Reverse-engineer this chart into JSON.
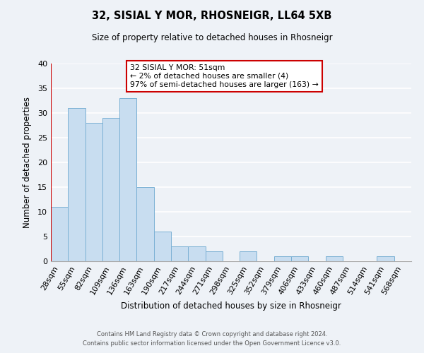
{
  "title": "32, SISIAL Y MOR, RHOSNEIGR, LL64 5XB",
  "subtitle": "Size of property relative to detached houses in Rhosneigr",
  "xlabel": "Distribution of detached houses by size in Rhosneigr",
  "ylabel": "Number of detached properties",
  "bar_color": "#c8ddf0",
  "bar_edge_color": "#7ab0d4",
  "highlight_left_edge_color": "#cc0000",
  "bins": [
    "28sqm",
    "55sqm",
    "82sqm",
    "109sqm",
    "136sqm",
    "163sqm",
    "190sqm",
    "217sqm",
    "244sqm",
    "271sqm",
    "298sqm",
    "325sqm",
    "352sqm",
    "379sqm",
    "406sqm",
    "433sqm",
    "460sqm",
    "487sqm",
    "514sqm",
    "541sqm",
    "568sqm"
  ],
  "values": [
    11,
    31,
    28,
    29,
    33,
    15,
    6,
    3,
    3,
    2,
    0,
    2,
    0,
    1,
    1,
    0,
    1,
    0,
    0,
    1,
    0
  ],
  "highlight_index": 0,
  "annotation_title": "32 SISIAL Y MOR: 51sqm",
  "annotation_line2": "← 2% of detached houses are smaller (4)",
  "annotation_line3": "97% of semi-detached houses are larger (163) →",
  "ylim": [
    0,
    40
  ],
  "yticks": [
    0,
    5,
    10,
    15,
    20,
    25,
    30,
    35,
    40
  ],
  "footnote1": "Contains HM Land Registry data © Crown copyright and database right 2024.",
  "footnote2": "Contains public sector information licensed under the Open Government Licence v3.0.",
  "background_color": "#eef2f7",
  "grid_color": "#ffffff",
  "annotation_box_color": "#ffffff",
  "annotation_box_edge": "#cc0000"
}
